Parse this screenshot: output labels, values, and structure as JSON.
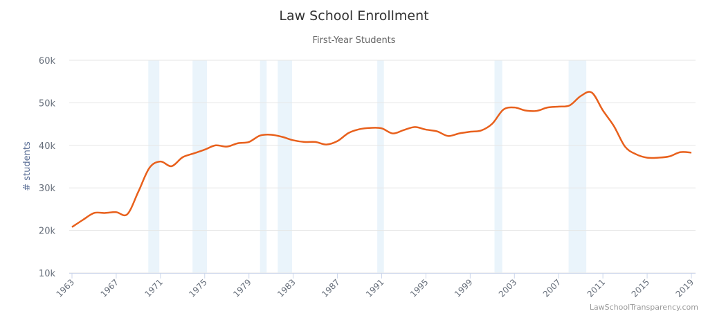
{
  "chart_data": {
    "type": "line",
    "title": "Law School Enrollment",
    "subtitle": "First-Year Students",
    "ylabel": "# students",
    "xlabel": "",
    "credits": "LawSchoolTransparency.com",
    "ylim": [
      10000,
      60000
    ],
    "xlim": [
      1963,
      2019
    ],
    "yticks": [
      {
        "v": 10000,
        "label": "10k"
      },
      {
        "v": 20000,
        "label": "20k"
      },
      {
        "v": 30000,
        "label": "30k"
      },
      {
        "v": 40000,
        "label": "40k"
      },
      {
        "v": 50000,
        "label": "50k"
      },
      {
        "v": 60000,
        "label": "60k"
      }
    ],
    "xticks": [
      1963,
      1967,
      1971,
      1975,
      1979,
      1983,
      1987,
      1991,
      1995,
      1999,
      2003,
      2007,
      2011,
      2015,
      2019
    ],
    "grid": true,
    "line_color": "#e8601c",
    "band_color": "#eaf4fb",
    "recession_bands": [
      [
        1969.9,
        1970.9
      ],
      [
        1973.9,
        1975.2
      ],
      [
        1980.0,
        1980.6
      ],
      [
        1981.6,
        1982.9
      ],
      [
        1990.6,
        1991.2
      ],
      [
        2001.2,
        2001.9
      ],
      [
        2007.9,
        2009.5
      ]
    ],
    "series": [
      {
        "name": "First-Year Students",
        "x": [
          1963,
          1964,
          1965,
          1966,
          1967,
          1968,
          1969,
          1970,
          1971,
          1972,
          1973,
          1974,
          1975,
          1976,
          1977,
          1978,
          1979,
          1980,
          1981,
          1982,
          1983,
          1984,
          1985,
          1986,
          1987,
          1988,
          1989,
          1990,
          1991,
          1992,
          1993,
          1994,
          1995,
          1996,
          1997,
          1998,
          1999,
          2000,
          2001,
          2002,
          2003,
          2004,
          2005,
          2006,
          2007,
          2008,
          2009,
          2010,
          2011,
          2012,
          2013,
          2014,
          2015,
          2016,
          2017,
          2018,
          2019
        ],
        "values": [
          20800,
          22500,
          24100,
          24100,
          24300,
          23800,
          29100,
          34700,
          36200,
          35100,
          37200,
          38100,
          39000,
          40000,
          39700,
          40500,
          40800,
          42300,
          42500,
          42000,
          41200,
          40800,
          40800,
          40200,
          41000,
          42900,
          43800,
          44100,
          44000,
          42800,
          43600,
          44300,
          43700,
          43300,
          42200,
          42800,
          43200,
          43500,
          45100,
          48400,
          48900,
          48200,
          48100,
          48900,
          49100,
          49400,
          51600,
          52400,
          48200,
          44500,
          39700,
          37900,
          37100,
          37100,
          37400,
          38400,
          38300
        ]
      }
    ]
  }
}
